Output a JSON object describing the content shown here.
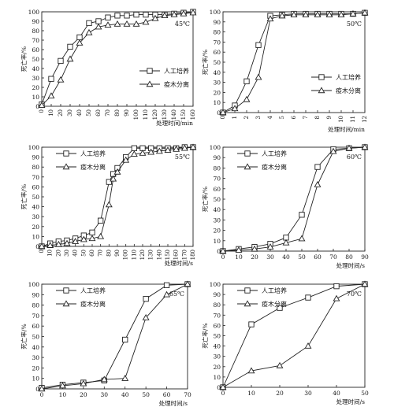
{
  "series_names": [
    "人工培养",
    "疫木分离"
  ],
  "chart_data": [
    {
      "type": "line",
      "temp_label": "45℃",
      "ylabel": "死亡率/%",
      "xlabel": "处理时间/min",
      "xlim": [
        0,
        160
      ],
      "ylim": [
        0,
        100
      ],
      "xticks": [
        0,
        10,
        20,
        30,
        40,
        50,
        60,
        70,
        80,
        90,
        100,
        110,
        120,
        130,
        140,
        150,
        160
      ],
      "yticks": [
        0,
        10,
        20,
        30,
        40,
        50,
        60,
        70,
        80,
        90,
        100
      ],
      "legend": "bottom-right",
      "series": [
        {
          "name": "人工培养",
          "marker": "square",
          "x": [
            0,
            10,
            20,
            30,
            40,
            50,
            60,
            70,
            80,
            90,
            100,
            110,
            120,
            130,
            140,
            150,
            160
          ],
          "y": [
            2,
            29,
            48,
            63,
            73,
            88,
            90,
            94,
            96,
            96,
            97,
            97,
            97,
            97,
            98,
            99,
            100
          ]
        },
        {
          "name": "疫木分离",
          "marker": "triangle",
          "x": [
            0,
            10,
            20,
            30,
            40,
            50,
            60,
            70,
            80,
            90,
            100,
            110,
            120,
            130,
            140,
            150,
            160
          ],
          "y": [
            1,
            11,
            28,
            50,
            67,
            78,
            84,
            86,
            87,
            87,
            87,
            89,
            93,
            96,
            97,
            98,
            99
          ]
        }
      ]
    },
    {
      "type": "line",
      "temp_label": "50℃",
      "ylabel": "死亡率/%",
      "xlabel": "处理时间/min",
      "xlim": [
        0,
        12
      ],
      "ylim": [
        0,
        100
      ],
      "xticks": [
        0,
        1,
        2,
        3,
        4,
        5,
        6,
        7,
        8,
        9,
        10,
        11,
        12
      ],
      "yticks": [
        0,
        10,
        20,
        30,
        40,
        50,
        60,
        70,
        80,
        90,
        100
      ],
      "legend": "bottom-right",
      "series": [
        {
          "name": "人工培养",
          "marker": "square",
          "x": [
            0,
            1,
            2,
            3,
            4,
            5,
            6,
            7,
            8,
            9,
            10,
            11,
            12
          ],
          "y": [
            0,
            7,
            31,
            67,
            96,
            97,
            98,
            98,
            98,
            98,
            98,
            98,
            99
          ]
        },
        {
          "name": "疫木分离",
          "marker": "triangle",
          "x": [
            0,
            1,
            2,
            3,
            4,
            5,
            6,
            7,
            8,
            9,
            10,
            11,
            12
          ],
          "y": [
            0,
            4,
            13,
            35,
            93,
            96,
            97,
            97,
            97,
            97,
            97,
            98,
            99
          ]
        }
      ]
    },
    {
      "type": "line",
      "temp_label": "55℃",
      "ylabel": "死亡率/%",
      "xlabel": "处理时间/s",
      "xlim": [
        0,
        180
      ],
      "ylim": [
        0,
        100
      ],
      "xticks": [
        0,
        10,
        20,
        30,
        40,
        50,
        60,
        70,
        80,
        90,
        100,
        110,
        120,
        130,
        140,
        150,
        160,
        170,
        180
      ],
      "yticks": [
        0,
        10,
        20,
        30,
        40,
        50,
        60,
        70,
        80,
        90,
        100
      ],
      "legend": "top-left",
      "series": [
        {
          "name": "人工培养",
          "marker": "square",
          "x": [
            0,
            10,
            20,
            30,
            40,
            50,
            60,
            70,
            80,
            85,
            90,
            100,
            110,
            120,
            130,
            140,
            150,
            160,
            170,
            180
          ],
          "y": [
            0,
            3,
            5,
            6,
            8,
            11,
            14,
            26,
            65,
            73,
            79,
            90,
            99,
            99,
            99,
            99,
            99,
            99,
            100,
            100
          ]
        },
        {
          "name": "疫木分离",
          "marker": "triangle",
          "x": [
            0,
            10,
            20,
            30,
            40,
            50,
            60,
            70,
            80,
            85,
            90,
            100,
            110,
            120,
            130,
            140,
            150,
            160,
            170,
            180
          ],
          "y": [
            0,
            1,
            2,
            3,
            5,
            7,
            8,
            10,
            42,
            68,
            75,
            87,
            93,
            94,
            95,
            96,
            97,
            98,
            99,
            100
          ]
        }
      ]
    },
    {
      "type": "line",
      "temp_label": "60℃",
      "ylabel": "死亡率/%",
      "xlabel": "处理时间/s",
      "xlim": [
        0,
        90
      ],
      "ylim": [
        0,
        100
      ],
      "xticks": [
        0,
        10,
        20,
        30,
        40,
        50,
        60,
        70,
        80,
        90
      ],
      "yticks": [
        0,
        10,
        20,
        30,
        40,
        50,
        60,
        70,
        80,
        90,
        100
      ],
      "legend": "top-left",
      "series": [
        {
          "name": "人工培养",
          "marker": "square",
          "x": [
            0,
            10,
            20,
            30,
            40,
            50,
            60,
            70,
            80,
            90
          ],
          "y": [
            0,
            2,
            4,
            7,
            13,
            35,
            81,
            98,
            99,
            100
          ]
        },
        {
          "name": "疫木分离",
          "marker": "triangle",
          "x": [
            0,
            10,
            20,
            30,
            40,
            50,
            60,
            70,
            80,
            90
          ],
          "y": [
            0,
            1,
            2,
            4,
            8,
            12,
            64,
            96,
            99,
            100
          ]
        }
      ]
    },
    {
      "type": "line",
      "temp_label": "65℃",
      "ylabel": "死亡率/%",
      "xlabel": "处理时间/s",
      "xlim": [
        0,
        70
      ],
      "ylim": [
        0,
        100
      ],
      "xticks": [
        0,
        10,
        20,
        30,
        40,
        50,
        60,
        70
      ],
      "yticks": [
        0,
        10,
        20,
        30,
        40,
        50,
        60,
        70,
        80,
        90,
        100
      ],
      "legend": "top-left",
      "series": [
        {
          "name": "人工培养",
          "marker": "square",
          "x": [
            0,
            10,
            20,
            30,
            40,
            50,
            60,
            70
          ],
          "y": [
            1,
            4,
            6,
            8,
            47,
            86,
            99,
            100
          ]
        },
        {
          "name": "疫木分离",
          "marker": "triangle",
          "x": [
            0,
            10,
            20,
            30,
            40,
            50,
            60,
            70
          ],
          "y": [
            0,
            3,
            5,
            9,
            10,
            68,
            90,
            100
          ]
        }
      ]
    },
    {
      "type": "line",
      "temp_label": "70℃",
      "ylabel": "死亡率/%",
      "xlabel": "处理时间/s",
      "xlim": [
        0,
        50
      ],
      "ylim": [
        0,
        100
      ],
      "xticks": [
        0,
        10,
        20,
        30,
        40,
        50
      ],
      "yticks": [
        0,
        10,
        20,
        30,
        40,
        50,
        60,
        70,
        80,
        90,
        100
      ],
      "legend": "top-left",
      "series": [
        {
          "name": "人工培养",
          "marker": "square",
          "x": [
            0,
            10,
            20,
            30,
            40,
            50
          ],
          "y": [
            0,
            61,
            77,
            87,
            98,
            100
          ]
        },
        {
          "name": "疫木分离",
          "marker": "triangle",
          "x": [
            0,
            10,
            20,
            30,
            40,
            50
          ],
          "y": [
            0,
            16,
            21,
            40,
            86,
            100
          ]
        }
      ]
    }
  ]
}
